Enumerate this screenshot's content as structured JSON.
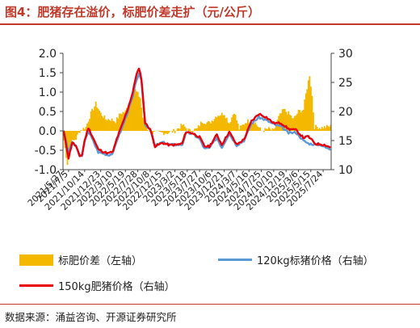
{
  "title": "图4：肥猪存在溢价，标肥价差走扩（元/公斤）",
  "source": "数据来源：涌益咨询、开源证券研究所",
  "colors": {
    "spread": "#f5b800",
    "standard": "#5b9bd5",
    "fat": "#e8000b",
    "accent": "#c0392b"
  },
  "chart_data": {
    "type": "bar+line",
    "categories": [
      "2021/5/27",
      "2021/7/5",
      "2021/10/14",
      "2021/12/23",
      "2022/3/10",
      "2022/5/19",
      "2022/7/28",
      "2022/10/8",
      "2022/12/15",
      "2023/3/2",
      "2023/5/18",
      "2023/7/27",
      "2023/10/6",
      "2023/12/21",
      "2024/3/7",
      "2024/5/16",
      "2024/7/25",
      "2024/10/10",
      "2024/12/19",
      "2025/3/6",
      "2025/5/15",
      "2025/7/24"
    ],
    "x_label_index": [
      0,
      4,
      17,
      30,
      40,
      50,
      60,
      70,
      80,
      90,
      100,
      110,
      120,
      130,
      140,
      150,
      160,
      170,
      180,
      190,
      200,
      210
    ],
    "n_points": 217,
    "left_axis": {
      "ylim": [
        -1.0,
        2.0
      ],
      "ticks": [
        "-1.0",
        "-0.5",
        "0.0",
        "0.5",
        "1.0",
        "1.5",
        "2.0"
      ]
    },
    "right_axis": {
      "ylim": [
        10,
        30
      ],
      "ticks": [
        "10",
        "15",
        "20",
        "25",
        "30"
      ]
    },
    "spread_keypoints": [
      [
        0,
        -0.25
      ],
      [
        3,
        -0.85
      ],
      [
        6,
        -0.3
      ],
      [
        10,
        -0.2
      ],
      [
        13,
        0.0
      ],
      [
        18,
        0.1
      ],
      [
        22,
        0.45
      ],
      [
        26,
        0.7
      ],
      [
        30,
        0.45
      ],
      [
        34,
        0.3
      ],
      [
        38,
        0.3
      ],
      [
        42,
        0.25
      ],
      [
        46,
        0.45
      ],
      [
        50,
        0.5
      ],
      [
        54,
        0.8
      ],
      [
        58,
        1.05
      ],
      [
        62,
        0.85
      ],
      [
        64,
        0.35
      ],
      [
        68,
        0.05
      ],
      [
        72,
        -0.05
      ],
      [
        78,
        -0.05
      ],
      [
        84,
        -0.05
      ],
      [
        90,
        0.0
      ],
      [
        96,
        0.15
      ],
      [
        102,
        0.0
      ],
      [
        108,
        0.05
      ],
      [
        112,
        0.25
      ],
      [
        118,
        0.2
      ],
      [
        124,
        0.4
      ],
      [
        130,
        0.45
      ],
      [
        134,
        0.2
      ],
      [
        138,
        0.5
      ],
      [
        142,
        0.05
      ],
      [
        148,
        0.25
      ],
      [
        154,
        0.25
      ],
      [
        160,
        0.0
      ],
      [
        166,
        0.05
      ],
      [
        170,
        0.0
      ],
      [
        174,
        0.35
      ],
      [
        178,
        0.55
      ],
      [
        182,
        0.45
      ],
      [
        186,
        0.3
      ],
      [
        190,
        0.5
      ],
      [
        194,
        0.55
      ],
      [
        196,
        0.95
      ],
      [
        199,
        1.45
      ],
      [
        201,
        0.9
      ],
      [
        203,
        0.1
      ],
      [
        206,
        0.1
      ],
      [
        208,
        0.08
      ],
      [
        212,
        0.1
      ],
      [
        216,
        0.12
      ]
    ],
    "standard_keypoints": [
      [
        0,
        16.8
      ],
      [
        2,
        14.8
      ],
      [
        4,
        13.0
      ],
      [
        7,
        14.8
      ],
      [
        10,
        14.0
      ],
      [
        13,
        12.3
      ],
      [
        15,
        12.5
      ],
      [
        17,
        14.8
      ],
      [
        20,
        16.7
      ],
      [
        24,
        14.9
      ],
      [
        28,
        13.0
      ],
      [
        32,
        12.8
      ],
      [
        36,
        12.5
      ],
      [
        40,
        12.8
      ],
      [
        43,
        15.0
      ],
      [
        47,
        17.0
      ],
      [
        52,
        20.0
      ],
      [
        56,
        22.5
      ],
      [
        59,
        25.5
      ],
      [
        61,
        26.4
      ],
      [
        63,
        25.2
      ],
      [
        66,
        17.7
      ],
      [
        70,
        17.0
      ],
      [
        74,
        14.1
      ],
      [
        80,
        14.7
      ],
      [
        86,
        14.3
      ],
      [
        92,
        14.3
      ],
      [
        96,
        14.3
      ],
      [
        99,
        16.3
      ],
      [
        104,
        16.2
      ],
      [
        110,
        15.3
      ],
      [
        114,
        13.6
      ],
      [
        118,
        13.7
      ],
      [
        124,
        15.5
      ],
      [
        128,
        13.8
      ],
      [
        134,
        16.2
      ],
      [
        140,
        14.2
      ],
      [
        146,
        15.0
      ],
      [
        152,
        17.9
      ],
      [
        158,
        19.0
      ],
      [
        164,
        18.5
      ],
      [
        170,
        17.8
      ],
      [
        176,
        17.4
      ],
      [
        182,
        16.3
      ],
      [
        188,
        16.4
      ],
      [
        194,
        15.0
      ],
      [
        198,
        14.5
      ],
      [
        204,
        14.3
      ],
      [
        208,
        14.3
      ],
      [
        212,
        13.8
      ],
      [
        216,
        13.5
      ]
    ],
    "fat_keypoints": [
      [
        0,
        16.6
      ],
      [
        2,
        14.4
      ],
      [
        4,
        12.0
      ],
      [
        7,
        14.7
      ],
      [
        10,
        14.0
      ],
      [
        13,
        12.3
      ],
      [
        15,
        12.6
      ],
      [
        17,
        15.0
      ],
      [
        20,
        17.2
      ],
      [
        24,
        15.4
      ],
      [
        28,
        13.5
      ],
      [
        32,
        13.1
      ],
      [
        36,
        12.8
      ],
      [
        40,
        13.1
      ],
      [
        43,
        15.3
      ],
      [
        47,
        17.5
      ],
      [
        52,
        20.5
      ],
      [
        56,
        23.3
      ],
      [
        59,
        26.5
      ],
      [
        61,
        27.3
      ],
      [
        63,
        25.6
      ],
      [
        66,
        18.0
      ],
      [
        70,
        17.0
      ],
      [
        74,
        14.0
      ],
      [
        80,
        14.6
      ],
      [
        86,
        14.2
      ],
      [
        92,
        14.3
      ],
      [
        96,
        14.5
      ],
      [
        99,
        16.5
      ],
      [
        104,
        16.3
      ],
      [
        110,
        15.6
      ],
      [
        114,
        14.0
      ],
      [
        118,
        14.0
      ],
      [
        124,
        16.0
      ],
      [
        128,
        14.3
      ],
      [
        134,
        16.5
      ],
      [
        140,
        14.3
      ],
      [
        146,
        15.2
      ],
      [
        152,
        18.3
      ],
      [
        158,
        19.6
      ],
      [
        164,
        19.0
      ],
      [
        170,
        18.0
      ],
      [
        176,
        18.0
      ],
      [
        182,
        17.0
      ],
      [
        188,
        16.8
      ],
      [
        194,
        15.5
      ],
      [
        198,
        15.7
      ],
      [
        204,
        14.4
      ],
      [
        208,
        14.4
      ],
      [
        212,
        14.2
      ],
      [
        216,
        13.8
      ]
    ],
    "legend": [
      {
        "key": "spread",
        "label": "标肥价差（左轴）"
      },
      {
        "key": "standard",
        "label": "120kg标猪价格（右轴）"
      },
      {
        "key": "fat",
        "label": "150kg肥猪价格（右轴）"
      }
    ]
  }
}
